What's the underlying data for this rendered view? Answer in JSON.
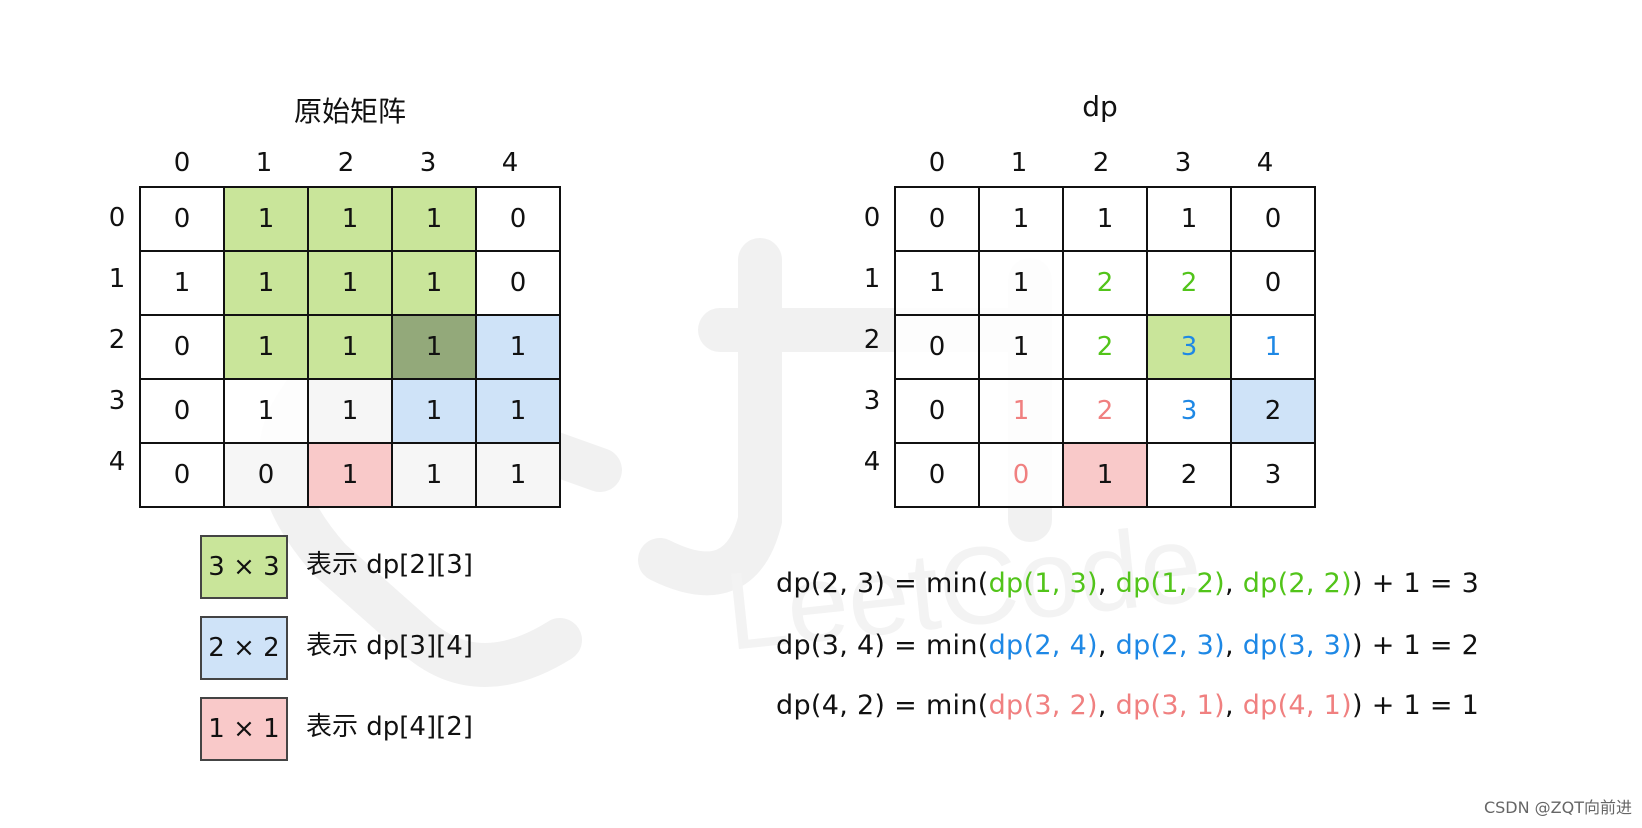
{
  "colors": {
    "green_fill": "#c9e59a",
    "green_overlap": "#93a97a",
    "blue_fill": "#cfe3f8",
    "pink_fill": "#f9c9c9",
    "light_gray": "#f6f6f6",
    "green_text": "#52c41a",
    "blue_text": "#1e88e5",
    "pink_text": "#f08080"
  },
  "left": {
    "title": "原始矩阵",
    "col_headers": [
      "0",
      "1",
      "2",
      "3",
      "4"
    ],
    "row_headers": [
      "0",
      "1",
      "2",
      "3",
      "4"
    ],
    "rows": [
      [
        "0",
        "1",
        "1",
        "1",
        "0"
      ],
      [
        "1",
        "1",
        "1",
        "1",
        "0"
      ],
      [
        "0",
        "1",
        "1",
        "1",
        "1"
      ],
      [
        "0",
        "1",
        "1",
        "1",
        "1"
      ],
      [
        "0",
        "0",
        "1",
        "1",
        "1"
      ]
    ],
    "fills": [
      [
        "",
        "green",
        "green",
        "green",
        ""
      ],
      [
        "",
        "green",
        "green",
        "green",
        ""
      ],
      [
        "",
        "green",
        "green",
        "overlap",
        "blue"
      ],
      [
        "",
        "",
        "gray",
        "blue",
        "blue"
      ],
      [
        "",
        "gray",
        "pink",
        "gray",
        "gray"
      ]
    ]
  },
  "right": {
    "title": "dp",
    "col_headers": [
      "0",
      "1",
      "2",
      "3",
      "4"
    ],
    "row_headers": [
      "0",
      "1",
      "2",
      "3",
      "4"
    ],
    "rows": [
      [
        "0",
        "1",
        "1",
        "1",
        "0"
      ],
      [
        "1",
        "1",
        "2",
        "2",
        "0"
      ],
      [
        "0",
        "1",
        "2",
        "3",
        "1"
      ],
      [
        "0",
        "1",
        "2",
        "3",
        "2"
      ],
      [
        "0",
        "0",
        "1",
        "2",
        "3"
      ]
    ],
    "fills": [
      [
        "",
        "",
        "",
        "",
        ""
      ],
      [
        "",
        "",
        "",
        "",
        ""
      ],
      [
        "",
        "",
        "",
        "green",
        ""
      ],
      [
        "",
        "",
        "",
        "",
        "blue"
      ],
      [
        "",
        "",
        "pink",
        "",
        ""
      ]
    ],
    "text_colors": [
      [
        "",
        "",
        "",
        "",
        ""
      ],
      [
        "",
        "",
        "green",
        "green",
        ""
      ],
      [
        "",
        "",
        "green",
        "blue",
        "blue"
      ],
      [
        "",
        "pink",
        "pink",
        "blue",
        ""
      ],
      [
        "",
        "pink",
        "",
        "",
        ""
      ]
    ]
  },
  "legend": [
    {
      "box": "3 × 3",
      "text": "表示 dp[2][3]",
      "color": "green"
    },
    {
      "box": "2 × 2",
      "text": "表示 dp[3][4]",
      "color": "blue"
    },
    {
      "box": "1 × 1",
      "text": "表示 dp[4][2]",
      "color": "pink"
    }
  ],
  "formulas": [
    {
      "color": "green",
      "prefix": "dp(2, 3) = min(",
      "p1": "dp(1, 3)",
      "p2": "dp(1, 2)",
      "p3": "dp(2, 2)",
      "suffix": ") + 1 = 3"
    },
    {
      "color": "blue",
      "prefix": "dp(3, 4) = min(",
      "p1": "dp(2, 4)",
      "p2": "dp(2, 3)",
      "p3": "dp(3, 3)",
      "suffix": ") + 1 = 2"
    },
    {
      "color": "pink",
      "prefix": "dp(4, 2) = min(",
      "p1": "dp(3, 2)",
      "p2": "dp(3, 1)",
      "p3": "dp(4, 1)",
      "suffix": ") + 1 = 1"
    }
  ],
  "sep": ", ",
  "watermark": "LeetCode",
  "credit": "CSDN @ZQT向前进"
}
